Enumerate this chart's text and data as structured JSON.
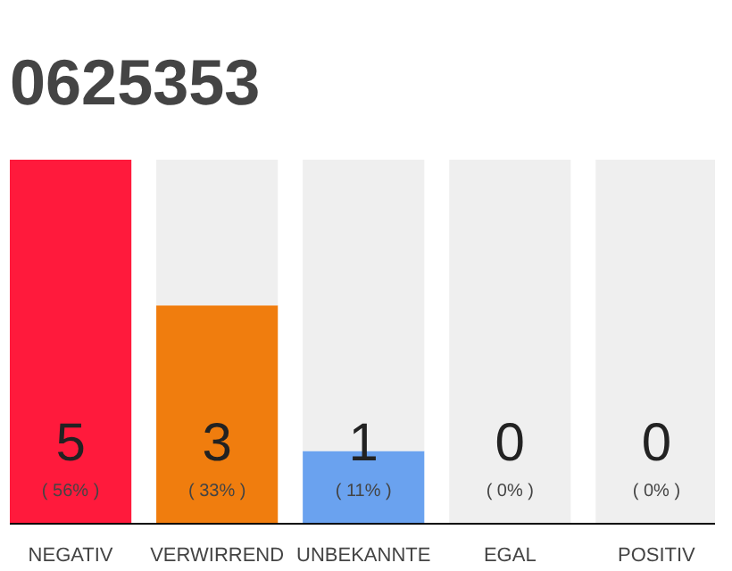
{
  "chart_data": {
    "type": "bar",
    "title": "0625353",
    "categories": [
      "NEGATIV",
      "VERWIRREND",
      "UNBEKANNTE",
      "EGAL",
      "POSITIV"
    ],
    "stacked": true,
    "series": [
      {
        "colors": [
          "#ff1a3c",
          "#f07d0e",
          "#6aa2ef",
          "#e0e0e0",
          "#e0e0e0"
        ],
        "values": [
          5,
          3,
          1,
          0,
          0
        ],
        "value_labels": [
          "5",
          "3",
          "1",
          null,
          null
        ]
      },
      {
        "color": "#efefef",
        "values": [
          0,
          2,
          4,
          5,
          5
        ]
      }
    ],
    "annotations": [
      {
        "text": "0",
        "x": "EGAL",
        "y": 0
      },
      {
        "text": "0",
        "x": "POSITIV",
        "y": 0
      },
      {
        "text": "( 56% )",
        "x": "NEGATIV",
        "y": 0
      },
      {
        "text": "( 33% )",
        "x": "VERWIRREND",
        "y": 0
      },
      {
        "text": "( 11% )",
        "x": "UNBEKANNTE",
        "y": 0
      },
      {
        "text": "( 0% )",
        "x": "EGAL",
        "y": 0
      },
      {
        "text": "( 0% )",
        "x": "POSITIV",
        "y": 0
      }
    ],
    "grid": false
  }
}
